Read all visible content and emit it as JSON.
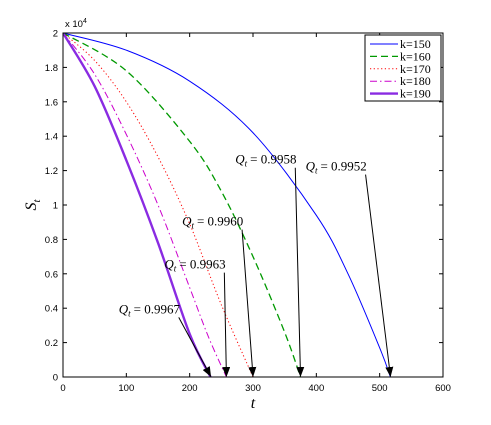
{
  "chart_data": {
    "type": "line",
    "xlabel": "t",
    "ylabel_main": "S",
    "ylabel_sub": "t",
    "xlim": [
      0,
      600
    ],
    "ylim": [
      0,
      20000
    ],
    "x_ticks": [
      0,
      100,
      200,
      300,
      400,
      500,
      600
    ],
    "y_ticks": [
      0,
      0.2,
      0.4,
      0.6,
      0.8,
      1,
      1.2,
      1.4,
      1.6,
      1.8,
      2
    ],
    "y_multiplier_base": "x 10",
    "y_multiplier_exp": "4",
    "y_tick_scale": 10000,
    "grid": false,
    "legend_position": "top-right",
    "series": [
      {
        "name": "k=150",
        "color": "#0000ff",
        "dash": "",
        "width": 1,
        "x": [
          0,
          100,
          200,
          300,
          400,
          450,
          500,
          517
        ],
        "y": [
          20000,
          19000,
          17200,
          14200,
          9400,
          6000,
          1700,
          0
        ]
      },
      {
        "name": "k=160",
        "color": "#009900",
        "dash": "7,4",
        "width": 1.3,
        "x": [
          0,
          100,
          200,
          250,
          300,
          350,
          375
        ],
        "y": [
          20000,
          17800,
          13700,
          10800,
          7000,
          2600,
          0
        ]
      },
      {
        "name": "k=170",
        "color": "#ff0000",
        "dash": "1.2,2.5",
        "width": 1,
        "x": [
          0,
          50,
          100,
          150,
          200,
          250,
          300
        ],
        "y": [
          20000,
          18400,
          16000,
          12800,
          8900,
          4200,
          0
        ]
      },
      {
        "name": "k=180",
        "color": "#cc00cc",
        "dash": "7,3,1.5,3",
        "width": 1,
        "x": [
          0,
          50,
          100,
          150,
          200,
          230,
          258
        ],
        "y": [
          20000,
          17600,
          14100,
          10000,
          5200,
          2300,
          0
        ]
      },
      {
        "name": "k=190",
        "color": "#8a2be2",
        "dash": "",
        "width": 2.4,
        "x": [
          0,
          50,
          100,
          150,
          200,
          233
        ],
        "y": [
          20000,
          16900,
          12600,
          7800,
          2500,
          0
        ]
      }
    ],
    "annotations": [
      {
        "label_main": "Q",
        "label_sub": "t",
        "label_value": "= 0.9952",
        "text_x": 383,
        "text_y": 12000,
        "arrow_to_x": 517,
        "arrow_to_y": 0
      },
      {
        "label_main": "Q",
        "label_sub": "t",
        "label_value": "= 0.9958",
        "text_x": 272,
        "text_y": 12400,
        "arrow_to_x": 375,
        "arrow_to_y": 0
      },
      {
        "label_main": "Q",
        "label_sub": "t",
        "label_value": "= 0.9960",
        "text_x": 188,
        "text_y": 8800,
        "arrow_to_x": 300,
        "arrow_to_y": 0
      },
      {
        "label_main": "Q",
        "label_sub": "t",
        "label_value": "= 0.9963",
        "text_x": 160,
        "text_y": 6300,
        "arrow_to_x": 258,
        "arrow_to_y": 0
      },
      {
        "label_main": "Q",
        "label_sub": "t",
        "label_value": "= 0.9967",
        "text_x": 88,
        "text_y": 3700,
        "arrow_to_x": 233,
        "arrow_to_y": 0
      }
    ]
  }
}
